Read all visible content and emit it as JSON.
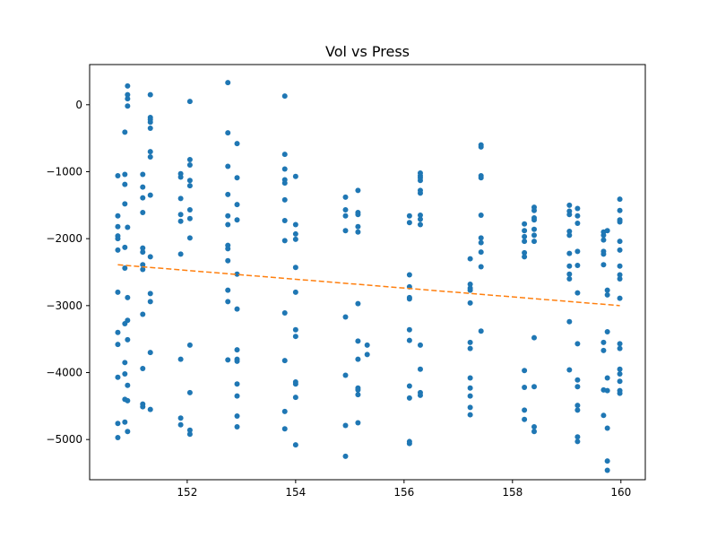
{
  "chart_data": {
    "type": "scatter",
    "title": "Vol vs Press",
    "xlabel": "",
    "ylabel": "",
    "xlim": [
      150.2,
      160.45
    ],
    "ylim": [
      -5600,
      600
    ],
    "xticks": [
      152,
      154,
      156,
      158,
      160
    ],
    "yticks": [
      0,
      -1000,
      -2000,
      -3000,
      -4000,
      -5000
    ],
    "xtick_labels": [
      "152",
      "154",
      "156",
      "158",
      "160"
    ],
    "ytick_labels": [
      "0",
      "−1000",
      "−2000",
      "−3000",
      "−4000",
      "−5000"
    ],
    "grid": false,
    "marker_color": "#1f77b4",
    "trend_color": "#ff7f0e",
    "series": [
      {
        "marker": "circle",
        "points": [
          [
            150.72,
            -1060
          ],
          [
            150.72,
            -1660
          ],
          [
            150.72,
            -1820
          ],
          [
            150.72,
            -1960
          ],
          [
            150.72,
            -2000
          ],
          [
            150.72,
            -2170
          ],
          [
            150.72,
            -2800
          ],
          [
            150.72,
            -3400
          ],
          [
            150.72,
            -3580
          ],
          [
            150.72,
            -4070
          ],
          [
            150.72,
            -4760
          ],
          [
            150.72,
            -4970
          ],
          [
            150.85,
            -410
          ],
          [
            150.85,
            -1040
          ],
          [
            150.85,
            -1190
          ],
          [
            150.85,
            -1480
          ],
          [
            150.85,
            -2130
          ],
          [
            150.85,
            -2440
          ],
          [
            150.85,
            -3270
          ],
          [
            150.85,
            -3850
          ],
          [
            150.85,
            -4020
          ],
          [
            150.85,
            -4400
          ],
          [
            150.85,
            -4740
          ],
          [
            150.9,
            280
          ],
          [
            150.9,
            150
          ],
          [
            150.9,
            90
          ],
          [
            150.9,
            -20
          ],
          [
            150.9,
            -1830
          ],
          [
            150.9,
            -2880
          ],
          [
            150.9,
            -3220
          ],
          [
            150.9,
            -3510
          ],
          [
            150.9,
            -4190
          ],
          [
            150.9,
            -4420
          ],
          [
            150.9,
            -4880
          ],
          [
            151.18,
            -1040
          ],
          [
            151.18,
            -1230
          ],
          [
            151.18,
            -1390
          ],
          [
            151.18,
            -1610
          ],
          [
            151.18,
            -2140
          ],
          [
            151.18,
            -2200
          ],
          [
            151.18,
            -2390
          ],
          [
            151.18,
            -2460
          ],
          [
            151.18,
            -3130
          ],
          [
            151.18,
            -3940
          ],
          [
            151.18,
            -4470
          ],
          [
            151.18,
            -4510
          ],
          [
            151.32,
            150
          ],
          [
            151.32,
            -190
          ],
          [
            151.32,
            -220
          ],
          [
            151.32,
            -260
          ],
          [
            151.32,
            -350
          ],
          [
            151.32,
            -700
          ],
          [
            151.32,
            -780
          ],
          [
            151.32,
            -1350
          ],
          [
            151.32,
            -2270
          ],
          [
            151.32,
            -2820
          ],
          [
            151.32,
            -2940
          ],
          [
            151.32,
            -3700
          ],
          [
            151.32,
            -4550
          ],
          [
            151.88,
            -1030
          ],
          [
            151.88,
            -1080
          ],
          [
            151.88,
            -1400
          ],
          [
            151.88,
            -1640
          ],
          [
            151.88,
            -1740
          ],
          [
            151.88,
            -2230
          ],
          [
            151.88,
            -3800
          ],
          [
            151.88,
            -4680
          ],
          [
            151.88,
            -4780
          ],
          [
            152.05,
            50
          ],
          [
            152.05,
            -820
          ],
          [
            152.05,
            -900
          ],
          [
            152.05,
            -1130
          ],
          [
            152.05,
            -1210
          ],
          [
            152.05,
            -1570
          ],
          [
            152.05,
            -1700
          ],
          [
            152.05,
            -1990
          ],
          [
            152.05,
            -3590
          ],
          [
            152.05,
            -4300
          ],
          [
            152.05,
            -4860
          ],
          [
            152.05,
            -4920
          ],
          [
            152.75,
            330
          ],
          [
            152.75,
            -420
          ],
          [
            152.75,
            -920
          ],
          [
            152.75,
            -1340
          ],
          [
            152.75,
            -1660
          ],
          [
            152.75,
            -1790
          ],
          [
            152.75,
            -2100
          ],
          [
            152.75,
            -2150
          ],
          [
            152.75,
            -2330
          ],
          [
            152.75,
            -2770
          ],
          [
            152.75,
            -2940
          ],
          [
            152.75,
            -3810
          ],
          [
            152.92,
            -580
          ],
          [
            152.92,
            -1090
          ],
          [
            152.92,
            -1490
          ],
          [
            152.92,
            -1720
          ],
          [
            152.92,
            -2530
          ],
          [
            152.92,
            -3050
          ],
          [
            152.92,
            -3660
          ],
          [
            152.92,
            -3800
          ],
          [
            152.92,
            -3830
          ],
          [
            152.92,
            -4170
          ],
          [
            152.92,
            -4350
          ],
          [
            152.92,
            -4650
          ],
          [
            152.92,
            -4810
          ],
          [
            153.8,
            130
          ],
          [
            153.8,
            -740
          ],
          [
            153.8,
            -960
          ],
          [
            153.8,
            -1120
          ],
          [
            153.8,
            -1170
          ],
          [
            153.8,
            -1420
          ],
          [
            153.8,
            -1730
          ],
          [
            153.8,
            -2030
          ],
          [
            153.8,
            -3110
          ],
          [
            153.8,
            -3820
          ],
          [
            153.8,
            -4580
          ],
          [
            153.8,
            -4840
          ],
          [
            154.0,
            -1070
          ],
          [
            154.0,
            -1790
          ],
          [
            154.0,
            -1930
          ],
          [
            154.0,
            -2010
          ],
          [
            154.0,
            -2430
          ],
          [
            154.0,
            -2800
          ],
          [
            154.0,
            -3360
          ],
          [
            154.0,
            -3460
          ],
          [
            154.0,
            -4140
          ],
          [
            154.0,
            -4170
          ],
          [
            154.0,
            -4370
          ],
          [
            154.0,
            -5080
          ],
          [
            154.92,
            -1380
          ],
          [
            154.92,
            -1570
          ],
          [
            154.92,
            -1660
          ],
          [
            154.92,
            -1880
          ],
          [
            154.92,
            -3170
          ],
          [
            154.92,
            -4040
          ],
          [
            154.92,
            -4790
          ],
          [
            154.92,
            -5250
          ],
          [
            155.15,
            -1280
          ],
          [
            155.15,
            -1610
          ],
          [
            155.15,
            -1640
          ],
          [
            155.15,
            -1820
          ],
          [
            155.15,
            -1900
          ],
          [
            155.15,
            -2970
          ],
          [
            155.15,
            -3530
          ],
          [
            155.15,
            -3800
          ],
          [
            155.15,
            -4230
          ],
          [
            155.15,
            -4260
          ],
          [
            155.15,
            -4330
          ],
          [
            155.15,
            -4750
          ],
          [
            155.32,
            -3590
          ],
          [
            155.32,
            -3730
          ],
          [
            156.1,
            -1660
          ],
          [
            156.1,
            -1760
          ],
          [
            156.1,
            -2540
          ],
          [
            156.1,
            -2720
          ],
          [
            156.1,
            -2880
          ],
          [
            156.1,
            -2900
          ],
          [
            156.1,
            -3360
          ],
          [
            156.1,
            -3520
          ],
          [
            156.1,
            -4200
          ],
          [
            156.1,
            -4380
          ],
          [
            156.1,
            -5030
          ],
          [
            156.1,
            -5060
          ],
          [
            156.3,
            -1020
          ],
          [
            156.3,
            -1060
          ],
          [
            156.3,
            -1090
          ],
          [
            156.3,
            -1130
          ],
          [
            156.3,
            -1280
          ],
          [
            156.3,
            -1320
          ],
          [
            156.3,
            -1650
          ],
          [
            156.3,
            -1710
          ],
          [
            156.3,
            -1790
          ],
          [
            156.3,
            -3590
          ],
          [
            156.3,
            -3950
          ],
          [
            156.3,
            -4300
          ],
          [
            156.3,
            -4340
          ],
          [
            157.22,
            -2300
          ],
          [
            157.22,
            -2680
          ],
          [
            157.22,
            -2740
          ],
          [
            157.22,
            -2770
          ],
          [
            157.22,
            -2960
          ],
          [
            157.22,
            -3550
          ],
          [
            157.22,
            -3640
          ],
          [
            157.22,
            -4080
          ],
          [
            157.22,
            -4230
          ],
          [
            157.22,
            -4350
          ],
          [
            157.22,
            -4520
          ],
          [
            157.22,
            -4630
          ],
          [
            157.42,
            -600
          ],
          [
            157.42,
            -630
          ],
          [
            157.42,
            -1060
          ],
          [
            157.42,
            -1090
          ],
          [
            157.42,
            -1650
          ],
          [
            157.42,
            -1990
          ],
          [
            157.42,
            -2060
          ],
          [
            157.42,
            -2200
          ],
          [
            157.42,
            -2420
          ],
          [
            157.42,
            -3380
          ],
          [
            158.22,
            -1780
          ],
          [
            158.22,
            -1880
          ],
          [
            158.22,
            -1970
          ],
          [
            158.22,
            -2040
          ],
          [
            158.22,
            -2210
          ],
          [
            158.22,
            -2270
          ],
          [
            158.22,
            -3970
          ],
          [
            158.22,
            -4220
          ],
          [
            158.22,
            -4560
          ],
          [
            158.22,
            -4700
          ],
          [
            158.4,
            -1530
          ],
          [
            158.4,
            -1580
          ],
          [
            158.4,
            -1690
          ],
          [
            158.4,
            -1720
          ],
          [
            158.4,
            -1860
          ],
          [
            158.4,
            -1950
          ],
          [
            158.4,
            -2040
          ],
          [
            158.4,
            -3480
          ],
          [
            158.4,
            -4210
          ],
          [
            158.4,
            -4810
          ],
          [
            158.4,
            -4880
          ],
          [
            159.05,
            -1500
          ],
          [
            159.05,
            -1590
          ],
          [
            159.05,
            -1640
          ],
          [
            159.05,
            -1890
          ],
          [
            159.05,
            -1950
          ],
          [
            159.05,
            -2220
          ],
          [
            159.05,
            -2410
          ],
          [
            159.05,
            -2530
          ],
          [
            159.05,
            -2600
          ],
          [
            159.05,
            -3240
          ],
          [
            159.05,
            -3960
          ],
          [
            159.2,
            -1550
          ],
          [
            159.2,
            -1660
          ],
          [
            159.2,
            -1770
          ],
          [
            159.2,
            -2190
          ],
          [
            159.2,
            -2400
          ],
          [
            159.2,
            -2810
          ],
          [
            159.2,
            -3570
          ],
          [
            159.2,
            -4110
          ],
          [
            159.2,
            -4210
          ],
          [
            159.2,
            -4490
          ],
          [
            159.2,
            -4560
          ],
          [
            159.2,
            -4960
          ],
          [
            159.2,
            -5030
          ],
          [
            159.68,
            -1900
          ],
          [
            159.68,
            -1950
          ],
          [
            159.68,
            -2020
          ],
          [
            159.68,
            -2190
          ],
          [
            159.68,
            -2230
          ],
          [
            159.68,
            -2390
          ],
          [
            159.68,
            -3550
          ],
          [
            159.68,
            -3670
          ],
          [
            159.68,
            -4260
          ],
          [
            159.68,
            -4640
          ],
          [
            159.75,
            -1880
          ],
          [
            159.75,
            -2770
          ],
          [
            159.75,
            -2840
          ],
          [
            159.75,
            -3390
          ],
          [
            159.75,
            -4080
          ],
          [
            159.75,
            -4270
          ],
          [
            159.75,
            -4830
          ],
          [
            159.75,
            -5320
          ],
          [
            159.75,
            -5460
          ],
          [
            159.98,
            -1410
          ],
          [
            159.98,
            -1580
          ],
          [
            159.98,
            -1720
          ],
          [
            159.98,
            -1750
          ],
          [
            159.98,
            -2040
          ],
          [
            159.98,
            -2170
          ],
          [
            159.98,
            -2410
          ],
          [
            159.98,
            -2540
          ],
          [
            159.98,
            -2600
          ],
          [
            159.98,
            -2890
          ],
          [
            159.98,
            -3570
          ],
          [
            159.98,
            -3640
          ],
          [
            159.98,
            -3950
          ],
          [
            159.98,
            -4020
          ],
          [
            159.98,
            -4130
          ],
          [
            159.98,
            -4270
          ],
          [
            159.98,
            -4310
          ]
        ]
      }
    ],
    "trend_line": {
      "style": "dashed",
      "points": [
        [
          150.72,
          -2390
        ],
        [
          159.98,
          -3000
        ]
      ]
    }
  }
}
